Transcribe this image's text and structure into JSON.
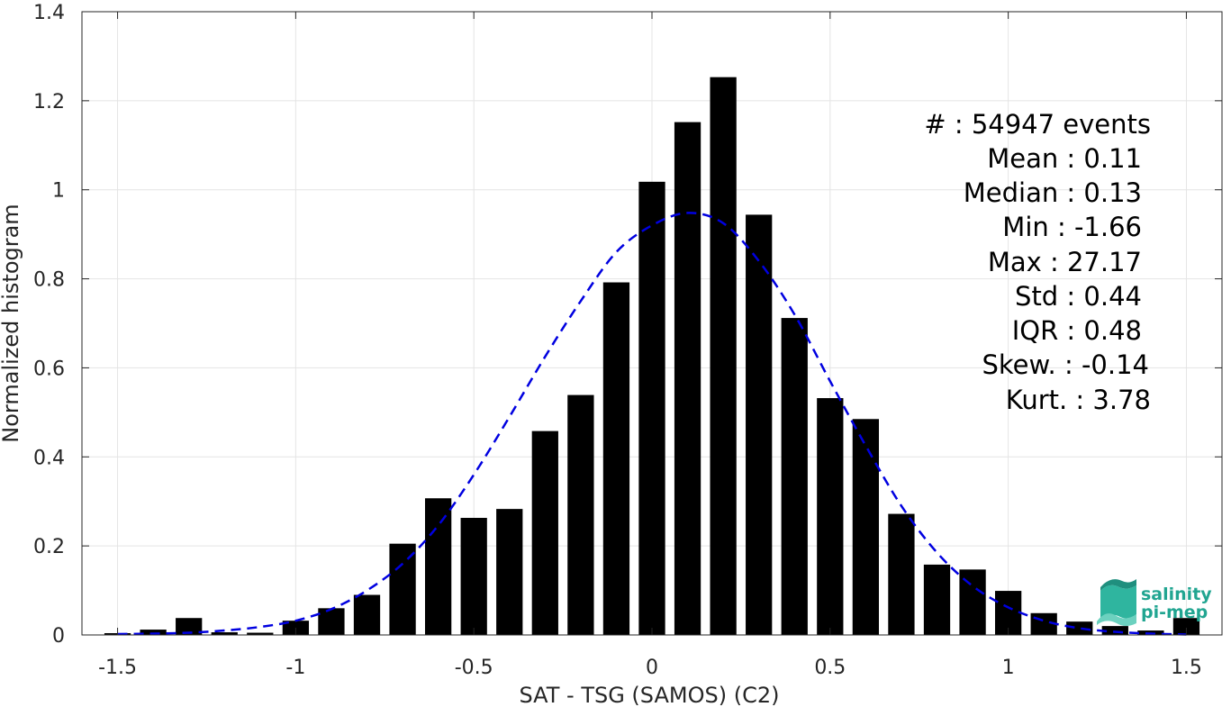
{
  "chart_data": {
    "type": "bar",
    "title": "",
    "xlabel": "SAT - TSG (SAMOS) (C2)",
    "ylabel": "Normalized histogram",
    "xlim": [
      -1.6,
      1.6
    ],
    "ylim": [
      0,
      1.4
    ],
    "xticks": [
      -1.5,
      -1,
      -0.5,
      0,
      0.5,
      1,
      1.5
    ],
    "xtick_labels": [
      "-1.5",
      "-1",
      "-0.5",
      "0",
      "0.5",
      "1",
      "1.5"
    ],
    "yticks": [
      0,
      0.2,
      0.4,
      0.6,
      0.8,
      1,
      1.2,
      1.4
    ],
    "ytick_labels": [
      "0",
      "0.2",
      "0.4",
      "0.6",
      "0.8",
      "1",
      "1.2",
      "1.4"
    ],
    "grid": true,
    "bin_width": 0.1,
    "bar_color": "#000000",
    "series": [
      {
        "x": [
          -1.5,
          -1.4,
          -1.3,
          -1.2,
          -1.1,
          -1.0,
          -0.9,
          -0.8,
          -0.7,
          -0.6,
          -0.5,
          -0.4,
          -0.3,
          -0.2,
          -0.1,
          0.0,
          0.1,
          0.2,
          0.3,
          0.4,
          0.5,
          0.6,
          0.7,
          0.8,
          0.9,
          1.0,
          1.1,
          1.2,
          1.3,
          1.4,
          1.5
        ],
        "values": [
          0.004,
          0.012,
          0.038,
          0.006,
          0.005,
          0.032,
          0.06,
          0.09,
          0.205,
          0.307,
          0.263,
          0.283,
          0.458,
          0.539,
          0.792,
          1.018,
          1.152,
          1.253,
          0.944,
          0.712,
          0.532,
          0.485,
          0.272,
          0.158,
          0.147,
          0.099,
          0.049,
          0.03,
          0.02,
          0.01,
          0.038
        ]
      }
    ],
    "fit_curve": {
      "style": "dashed",
      "color": "#0000e0",
      "x": [
        -1.5,
        -1.4,
        -1.3,
        -1.2,
        -1.1,
        -1.0,
        -0.9,
        -0.8,
        -0.7,
        -0.6,
        -0.5,
        -0.4,
        -0.3,
        -0.2,
        -0.1,
        0.0,
        0.1,
        0.2,
        0.3,
        0.4,
        0.5,
        0.6,
        0.7,
        0.8,
        0.9,
        1.0,
        1.1,
        1.2,
        1.3,
        1.4,
        1.5
      ],
      "y": [
        0.002,
        0.003,
        0.005,
        0.01,
        0.018,
        0.032,
        0.058,
        0.1,
        0.16,
        0.246,
        0.36,
        0.49,
        0.625,
        0.75,
        0.86,
        0.92,
        0.948,
        0.925,
        0.84,
        0.72,
        0.57,
        0.425,
        0.29,
        0.185,
        0.11,
        0.062,
        0.032,
        0.015,
        0.007,
        0.003,
        0.001
      ]
    }
  },
  "stats": {
    "lines": [
      "#  : 54947 events",
      "Mean : 0.11",
      "Median : 0.13",
      "Min : -1.66",
      "Max : 27.17",
      "Std : 0.44",
      "IQR : 0.48",
      "Skew. : -0.14",
      "Kurt. : 3.78"
    ]
  },
  "logo": {
    "line1": "salinity",
    "line2": "pi-mep",
    "color": "#21a591"
  }
}
